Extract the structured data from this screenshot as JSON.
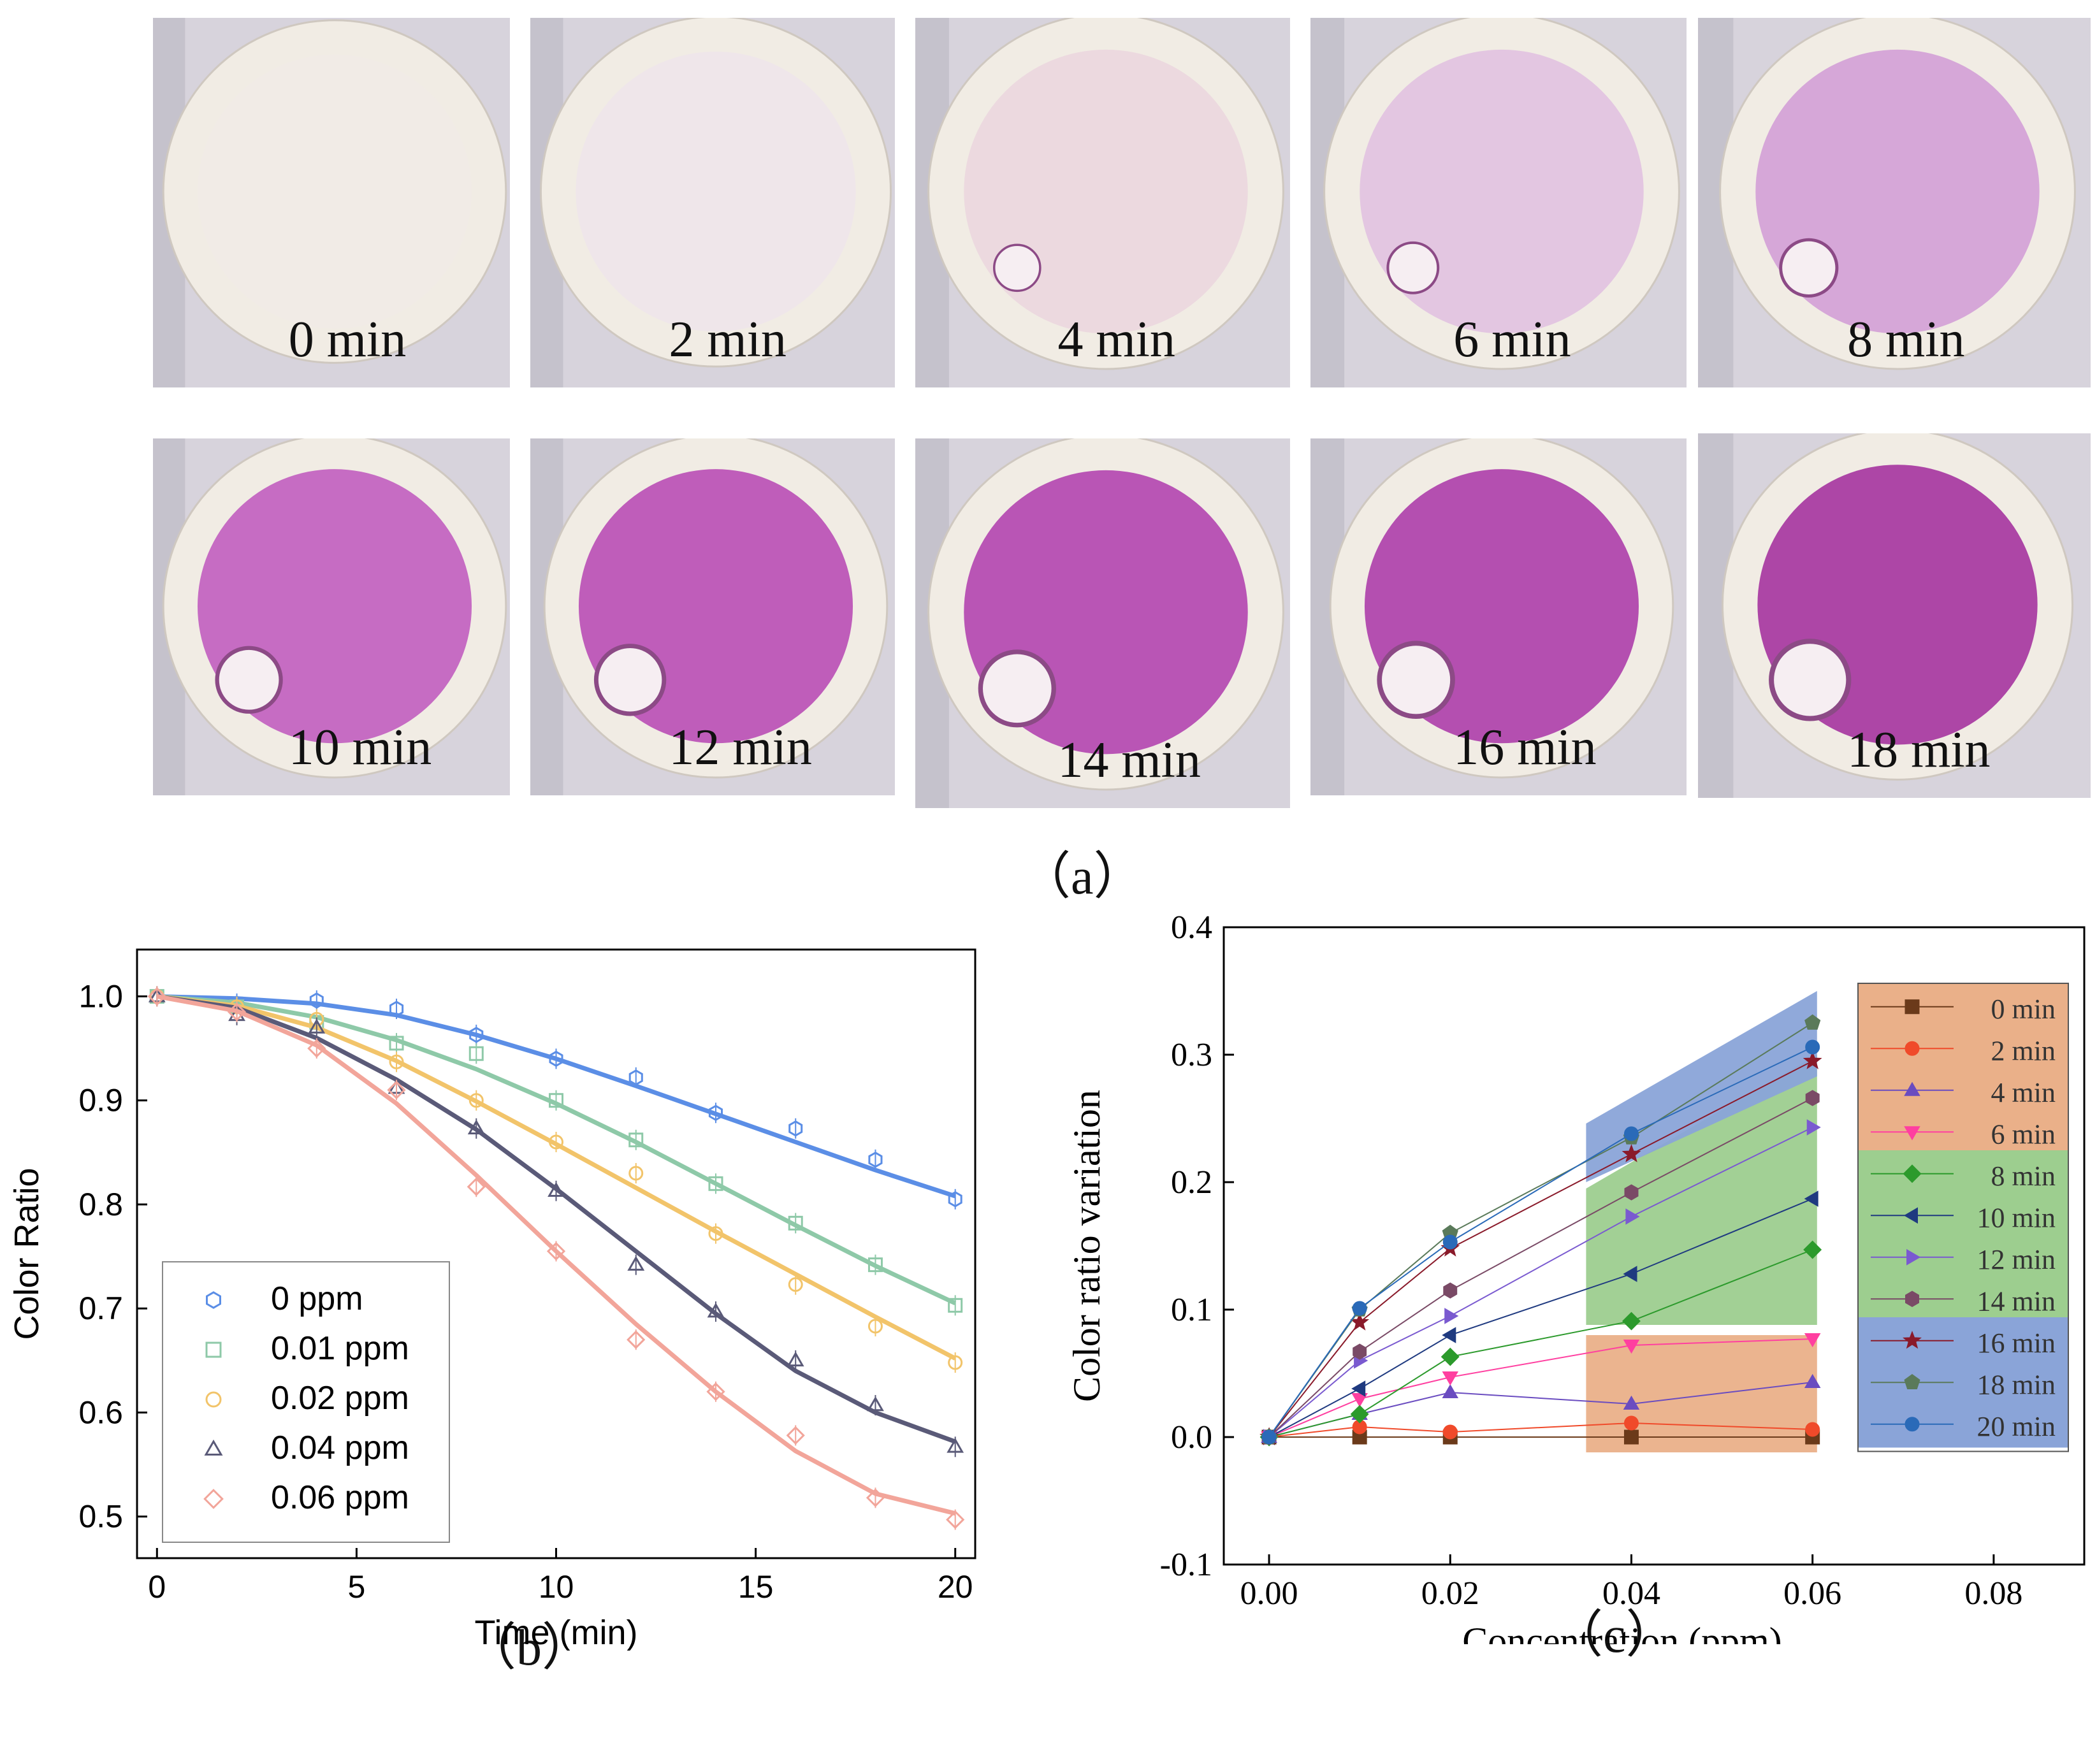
{
  "panel_labels": {
    "a": "（a）",
    "b": "（b）",
    "c": "（c）"
  },
  "photos": [
    {
      "label": "0 min",
      "stain": "#f1ebe6",
      "intensity": 0.0
    },
    {
      "label": "2 min",
      "stain": "#efe6ea",
      "intensity": 0.03
    },
    {
      "label": "4 min",
      "stain": "#ecd9df",
      "intensity": 0.08
    },
    {
      "label": "6 min",
      "stain": "#e3c6e1",
      "intensity": 0.18
    },
    {
      "label": "8 min",
      "stain": "#d6a7d8",
      "intensity": 0.32
    },
    {
      "label": "10 min",
      "stain": "#c66cc3",
      "intensity": 0.55
    },
    {
      "label": "12 min",
      "stain": "#bf5dba",
      "intensity": 0.65
    },
    {
      "label": "14 min",
      "stain": "#b955b5",
      "intensity": 0.72
    },
    {
      "label": "16 min",
      "stain": "#b44fb0",
      "intensity": 0.78
    },
    {
      "label": "18 min",
      "stain": "#ad46a6",
      "intensity": 0.84
    }
  ],
  "chart_data": [
    {
      "type": "scatter",
      "xlabel": "Time (min)",
      "ylabel": "Color Ratio",
      "xlim": [
        -0.5,
        20.5
      ],
      "ylim": [
        0.46,
        1.045
      ],
      "xticks": [
        0,
        5,
        10,
        15,
        20
      ],
      "yticks": [
        0.5,
        0.6,
        0.7,
        0.8,
        0.9,
        1.0
      ],
      "xtick_labels": [
        "0",
        "5",
        "10",
        "15",
        "20"
      ],
      "ytick_labels": [
        "0.5",
        "0.6",
        "0.7",
        "0.8",
        "0.9",
        "1.0"
      ],
      "legend_position": "lower-left",
      "x": [
        0,
        2,
        4,
        6,
        8,
        10,
        12,
        14,
        16,
        18,
        20
      ],
      "series": [
        {
          "name": "0 ppm",
          "marker": "hexagon",
          "color": "#5b8ee6",
          "values": [
            1.0,
            0.993,
            0.996,
            0.988,
            0.963,
            0.94,
            0.922,
            0.888,
            0.873,
            0.843,
            0.805
          ],
          "fit": [
            1.0,
            0.998,
            0.993,
            0.982,
            0.963,
            0.94,
            0.914,
            0.887,
            0.86,
            0.833,
            0.808
          ]
        },
        {
          "name": "0.01 ppm",
          "marker": "square",
          "color": "#8ec9a8",
          "values": [
            1.0,
            0.99,
            0.975,
            0.955,
            0.945,
            0.9,
            0.862,
            0.82,
            0.782,
            0.742,
            0.703
          ],
          "fit": [
            1.0,
            0.994,
            0.98,
            0.958,
            0.93,
            0.897,
            0.86,
            0.82,
            0.78,
            0.741,
            0.705
          ]
        },
        {
          "name": "0.02 ppm",
          "marker": "circle",
          "color": "#f2c46a",
          "values": [
            1.0,
            0.99,
            0.978,
            0.937,
            0.9,
            0.86,
            0.83,
            0.772,
            0.723,
            0.683,
            0.648
          ],
          "fit": [
            1.0,
            0.991,
            0.97,
            0.938,
            0.899,
            0.858,
            0.816,
            0.774,
            0.733,
            0.692,
            0.652
          ]
        },
        {
          "name": "0.04 ppm",
          "marker": "triangle",
          "color": "#5a5a78",
          "values": [
            1.0,
            0.982,
            0.97,
            0.912,
            0.873,
            0.813,
            0.742,
            0.697,
            0.65,
            0.607,
            0.567
          ],
          "fit": [
            1.0,
            0.989,
            0.96,
            0.92,
            0.872,
            0.815,
            0.755,
            0.695,
            0.64,
            0.6,
            0.572
          ]
        },
        {
          "name": "0.06 ppm",
          "marker": "diamond",
          "color": "#f2a59a",
          "values": [
            1.0,
            0.985,
            0.95,
            0.91,
            0.817,
            0.755,
            0.67,
            0.62,
            0.578,
            0.518,
            0.497
          ],
          "fit": [
            1.0,
            0.986,
            0.953,
            0.897,
            0.828,
            0.755,
            0.685,
            0.62,
            0.563,
            0.522,
            0.503
          ]
        }
      ]
    },
    {
      "type": "line",
      "xlabel": "Concentration (ppm)",
      "ylabel": "Color ratio variation",
      "xlim": [
        -0.005,
        0.09
      ],
      "ylim": [
        -0.1,
        0.4
      ],
      "xticks": [
        0.0,
        0.02,
        0.04,
        0.06,
        0.08
      ],
      "yticks": [
        -0.1,
        0.0,
        0.1,
        0.2,
        0.3,
        0.4
      ],
      "xtick_labels": [
        "0.00",
        "0.02",
        "0.04",
        "0.06",
        "0.08"
      ],
      "ytick_labels": [
        "-0.1",
        "0.0",
        "0.1",
        "0.2",
        "0.3",
        "0.4"
      ],
      "legend_position": "right",
      "x": [
        0.0,
        0.01,
        0.02,
        0.04,
        0.06
      ],
      "bands": [
        {
          "group": "low",
          "color": "#eab089",
          "x": [
            0.035,
            0.0605
          ],
          "lower": [
            -0.012,
            -0.012
          ],
          "upper": [
            0.08,
            0.08
          ]
        },
        {
          "group": "mid",
          "color": "#9dce8f",
          "x": [
            0.035,
            0.0605
          ],
          "lower": [
            0.088,
            0.088
          ],
          "upper": [
            0.195,
            0.3
          ]
        },
        {
          "group": "high",
          "color": "#8aa4d8",
          "x": [
            0.035,
            0.0605
          ],
          "lower": [
            0.2,
            0.283
          ],
          "upper": [
            0.246,
            0.35
          ]
        }
      ],
      "legend_groups": [
        {
          "color": "#eab089",
          "from": 0,
          "to": 3
        },
        {
          "color": "#9dce8f",
          "from": 4,
          "to": 7
        },
        {
          "color": "#8aa4d8",
          "from": 8,
          "to": 10
        }
      ],
      "series": [
        {
          "name": "0 min",
          "marker": "square",
          "color": "#6b3a1a",
          "values": [
            0.0,
            0.0,
            0.0,
            0.0,
            0.0
          ]
        },
        {
          "name": "2 min",
          "marker": "circle",
          "color": "#f04a2a",
          "values": [
            0.0,
            0.008,
            0.004,
            0.011,
            0.006
          ]
        },
        {
          "name": "4 min",
          "marker": "triangle-up",
          "color": "#6a4cc0",
          "values": [
            0.0,
            0.018,
            0.035,
            0.026,
            0.043
          ]
        },
        {
          "name": "6 min",
          "marker": "triangle-down",
          "color": "#ff3fa0",
          "values": [
            0.0,
            0.03,
            0.047,
            0.072,
            0.077
          ]
        },
        {
          "name": "8 min",
          "marker": "diamond",
          "color": "#2c9a2c",
          "values": [
            0.0,
            0.018,
            0.063,
            0.091,
            0.147
          ]
        },
        {
          "name": "10 min",
          "marker": "triangle-left",
          "color": "#1f3a80",
          "values": [
            0.0,
            0.038,
            0.08,
            0.128,
            0.187
          ]
        },
        {
          "name": "12 min",
          "marker": "triangle-right",
          "color": "#7a5ad0",
          "values": [
            0.0,
            0.06,
            0.095,
            0.173,
            0.243
          ]
        },
        {
          "name": "14 min",
          "marker": "hexagon",
          "color": "#7a4a66",
          "values": [
            0.0,
            0.067,
            0.115,
            0.192,
            0.266
          ]
        },
        {
          "name": "16 min",
          "marker": "star",
          "color": "#8a1a2a",
          "values": [
            0.0,
            0.09,
            0.148,
            0.222,
            0.295
          ]
        },
        {
          "name": "18 min",
          "marker": "pentagon",
          "color": "#5a7a5a",
          "values": [
            0.0,
            0.1,
            0.16,
            0.235,
            0.325
          ]
        },
        {
          "name": "20 min",
          "marker": "sphere",
          "color": "#2a6ab8",
          "values": [
            0.0,
            0.101,
            0.153,
            0.238,
            0.306
          ]
        }
      ]
    }
  ]
}
